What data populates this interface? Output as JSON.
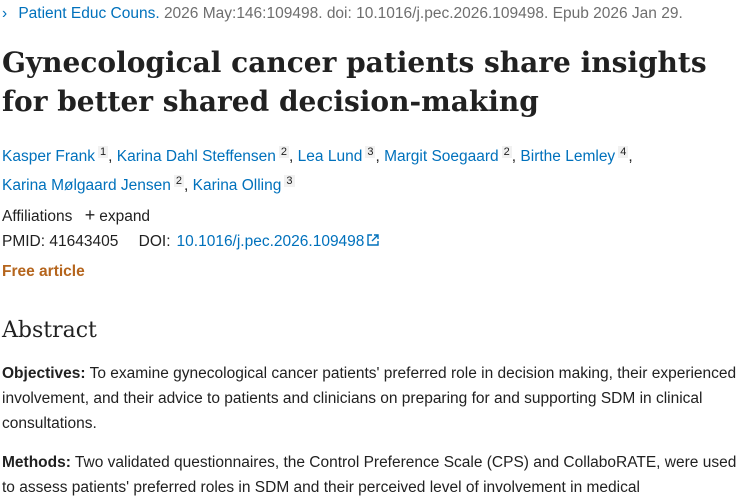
{
  "citation": {
    "journal": "Patient Educ Couns.",
    "details": "2026 May:146:109498. doi: 10.1016/j.pec.2026.109498. Epub 2026 Jan 29."
  },
  "title": "Gynecological cancer patients share insights for better shared decision-making",
  "authors": [
    {
      "name": "Kasper Frank",
      "aff": "1"
    },
    {
      "name": "Karina Dahl Steffensen",
      "aff": "2"
    },
    {
      "name": "Lea Lund",
      "aff": "3"
    },
    {
      "name": "Margit Soegaard",
      "aff": "2"
    },
    {
      "name": "Birthe Lemley",
      "aff": "4"
    },
    {
      "name": "Karina Mølgaard Jensen",
      "aff": "2"
    },
    {
      "name": "Karina Olling",
      "aff": "3"
    }
  ],
  "affiliations": {
    "label": "Affiliations",
    "expand_label": "expand"
  },
  "identifiers": {
    "pmid_label": "PMID:",
    "pmid": "41643405",
    "doi_label": "DOI:",
    "doi": "10.1016/j.pec.2026.109498"
  },
  "free_article": "Free article",
  "abstract": {
    "heading": "Abstract",
    "sections": [
      {
        "label": "Objectives:",
        "text": "To examine gynecological cancer patients' preferred role in decision making, their experienced involvement, and their advice to patients and clinicians on preparing for and supporting SDM in clinical consultations."
      },
      {
        "label": "Methods:",
        "text": "Two validated questionnaires, the Control Preference Scale (CPS) and CollaboRATE, were used to assess patients' preferred roles in SDM and their perceived level of involvement in medical"
      }
    ]
  },
  "colors": {
    "link": "#0071bc",
    "free_article": "#b5651d",
    "text": "#212121",
    "muted": "#6e6e6e"
  }
}
